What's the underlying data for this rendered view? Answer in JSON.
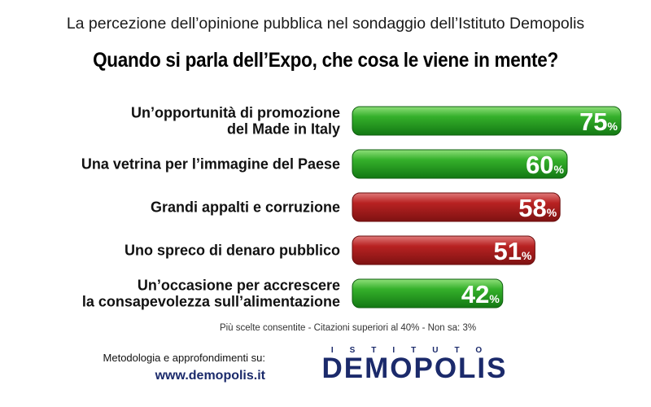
{
  "header": {
    "subtitle": "La percezione dell’opinione pubblica nel sondaggio dell’Istituto Demopolis",
    "title": "Quando si parla dell’Expo, che cosa le viene in mente?"
  },
  "chart_data": {
    "type": "bar",
    "orientation": "horizontal",
    "categories": [
      [
        "Un’opportunità di promozione",
        "del Made in Italy"
      ],
      [
        "Una vetrina per l’immagine del Paese"
      ],
      [
        "Grandi appalti e corruzione"
      ],
      [
        "Uno spreco di denaro pubblico"
      ],
      [
        "Un’occasione per accrescere",
        "la consapevolezza sull’alimentazione"
      ]
    ],
    "values": [
      75,
      60,
      58,
      51,
      42
    ],
    "unit": "%",
    "colors": [
      "#1f9a1f",
      "#1f9a1f",
      "#a71d1d",
      "#a71d1d",
      "#1f9a1f"
    ],
    "xlim": [
      0,
      100
    ],
    "grid": false,
    "legend": "none"
  },
  "footer": {
    "note": "Più scelte consentite - Citazioni superiori al 40% - Non sa: 3%",
    "methodology": "Metodologia e approfondimenti su:",
    "url": "www.demopolis.it",
    "logo_top": "ISTITUTO",
    "logo_main": "DEMOPOLIS"
  }
}
